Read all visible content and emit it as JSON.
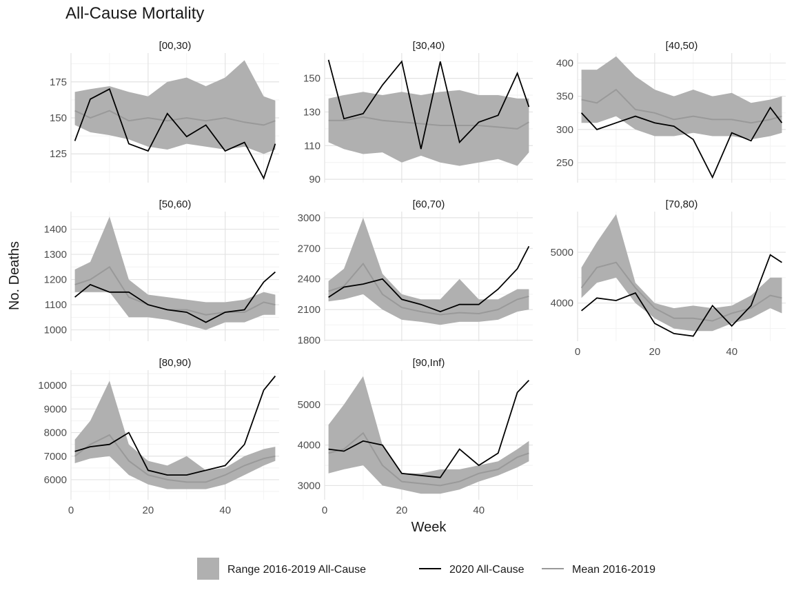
{
  "title": "All-Cause Mortality",
  "chart_data": {
    "type": "line",
    "title": "All-Cause Mortality",
    "xlabel": "Week",
    "ylabel": "No. Deaths",
    "xlim": [
      0,
      54
    ],
    "x_ticks": [
      "0",
      "20",
      "40"
    ],
    "grid": true,
    "legend_position": "bottom",
    "legend": [
      {
        "key": "range",
        "label": "Range 2016-2019 All-Cause",
        "color": "#b0b0b0"
      },
      {
        "key": "y2020",
        "label": "2020 All-Cause",
        "color": "#000000"
      },
      {
        "key": "mean",
        "label": "Mean 2016-2019",
        "color": "#999999"
      }
    ],
    "panels": [
      {
        "label": "[00,30)",
        "ylim": [
          105,
          195
        ],
        "y_ticks": [
          125,
          150,
          175
        ],
        "x": [
          1,
          5,
          10,
          15,
          20,
          25,
          30,
          35,
          40,
          45,
          50,
          53
        ],
        "y2020": [
          134,
          163,
          170,
          132,
          127,
          153,
          137,
          145,
          127,
          133,
          108,
          132
        ],
        "mean": [
          155,
          150,
          155,
          148,
          150,
          148,
          150,
          148,
          150,
          147,
          145,
          148
        ],
        "lower": [
          145,
          140,
          138,
          135,
          130,
          128,
          132,
          130,
          128,
          130,
          125,
          128
        ],
        "upper": [
          168,
          170,
          172,
          168,
          165,
          175,
          178,
          172,
          178,
          190,
          165,
          162
        ]
      },
      {
        "label": "[30,40)",
        "ylim": [
          88,
          165
        ],
        "y_ticks": [
          90,
          110,
          130,
          150
        ],
        "x": [
          1,
          5,
          10,
          15,
          20,
          25,
          30,
          35,
          40,
          45,
          50,
          53
        ],
        "y2020": [
          161,
          126,
          129,
          146,
          160,
          108,
          160,
          112,
          124,
          128,
          153,
          133
        ],
        "mean": [
          125,
          125,
          127,
          125,
          124,
          123,
          122,
          122,
          122,
          121,
          120,
          124
        ],
        "lower": [
          112,
          108,
          105,
          106,
          100,
          104,
          100,
          98,
          100,
          102,
          98,
          106
        ],
        "upper": [
          138,
          140,
          142,
          140,
          142,
          140,
          142,
          143,
          140,
          140,
          138,
          138
        ]
      },
      {
        "label": "[40,50)",
        "ylim": [
          220,
          415
        ],
        "y_ticks": [
          250,
          300,
          350,
          400
        ],
        "x": [
          1,
          5,
          10,
          15,
          20,
          25,
          30,
          35,
          40,
          45,
          50,
          53
        ],
        "y2020": [
          325,
          300,
          310,
          320,
          310,
          305,
          285,
          228,
          295,
          283,
          333,
          310
        ],
        "mean": [
          345,
          340,
          360,
          330,
          325,
          315,
          320,
          315,
          315,
          310,
          315,
          320
        ],
        "lower": [
          310,
          310,
          320,
          300,
          290,
          290,
          295,
          290,
          290,
          285,
          290,
          295
        ],
        "upper": [
          390,
          390,
          410,
          380,
          360,
          350,
          360,
          350,
          355,
          340,
          345,
          350
        ]
      },
      {
        "label": "[50,60)",
        "ylim": [
          955,
          1470
        ],
        "y_ticks": [
          1000,
          1100,
          1200,
          1300,
          1400
        ],
        "x": [
          1,
          5,
          10,
          15,
          20,
          25,
          30,
          35,
          40,
          45,
          50,
          53
        ],
        "y2020": [
          1130,
          1180,
          1150,
          1150,
          1100,
          1080,
          1070,
          1030,
          1070,
          1080,
          1190,
          1230
        ],
        "mean": [
          1180,
          1200,
          1250,
          1130,
          1100,
          1080,
          1080,
          1060,
          1070,
          1070,
          1110,
          1100
        ],
        "lower": [
          1150,
          1150,
          1150,
          1050,
          1050,
          1040,
          1020,
          1000,
          1030,
          1030,
          1060,
          1060
        ],
        "upper": [
          1240,
          1270,
          1450,
          1200,
          1140,
          1130,
          1120,
          1110,
          1110,
          1120,
          1150,
          1140
        ]
      },
      {
        "label": "[60,70)",
        "ylim": [
          1790,
          3060
        ],
        "y_ticks": [
          1800,
          2100,
          2400,
          2700,
          3000
        ],
        "x": [
          1,
          5,
          10,
          15,
          20,
          25,
          30,
          35,
          40,
          45,
          50,
          53
        ],
        "y2020": [
          2220,
          2320,
          2350,
          2400,
          2200,
          2150,
          2080,
          2150,
          2150,
          2300,
          2500,
          2720
        ],
        "mean": [
          2280,
          2330,
          2550,
          2250,
          2120,
          2080,
          2050,
          2070,
          2060,
          2100,
          2200,
          2230
        ],
        "lower": [
          2180,
          2200,
          2250,
          2100,
          2000,
          1980,
          1950,
          1980,
          1980,
          2000,
          2080,
          2100
        ],
        "upper": [
          2380,
          2500,
          3000,
          2450,
          2250,
          2200,
          2200,
          2400,
          2200,
          2200,
          2300,
          2300
        ]
      },
      {
        "label": "[70,80)",
        "ylim": [
          3250,
          5800
        ],
        "y_ticks": [
          4000,
          5000
        ],
        "x": [
          1,
          5,
          10,
          15,
          20,
          25,
          30,
          35,
          40,
          45,
          50,
          53
        ],
        "y2020": [
          3850,
          4100,
          4050,
          4200,
          3600,
          3400,
          3350,
          3950,
          3550,
          3950,
          4950,
          4800
        ],
        "mean": [
          4300,
          4700,
          4800,
          4300,
          3900,
          3700,
          3700,
          3650,
          3800,
          3900,
          4150,
          4100
        ],
        "lower": [
          4100,
          4400,
          4500,
          4000,
          3700,
          3500,
          3450,
          3450,
          3600,
          3700,
          3900,
          3800
        ],
        "upper": [
          4700,
          5200,
          5750,
          4400,
          4000,
          3900,
          3950,
          3900,
          3950,
          4150,
          4500,
          4500
        ]
      },
      {
        "label": "[80,90)",
        "ylim": [
          5150,
          10650
        ],
        "y_ticks": [
          6000,
          7000,
          8000,
          9000,
          10000
        ],
        "x": [
          1,
          5,
          10,
          15,
          20,
          25,
          30,
          35,
          40,
          45,
          50,
          53
        ],
        "y2020": [
          7200,
          7400,
          7500,
          8000,
          6400,
          6200,
          6200,
          6400,
          6600,
          7500,
          9800,
          10400
        ],
        "mean": [
          7000,
          7500,
          7900,
          6800,
          6200,
          6000,
          5900,
          5900,
          6200,
          6600,
          6900,
          7000
        ],
        "lower": [
          6700,
          6900,
          7000,
          6200,
          5800,
          5600,
          5600,
          5600,
          5800,
          6200,
          6600,
          6800
        ],
        "upper": [
          7700,
          8500,
          10200,
          7500,
          6800,
          6600,
          7000,
          6400,
          6500,
          7000,
          7300,
          7400
        ]
      },
      {
        "label": "[90,Inf)",
        "ylim": [
          2650,
          5850
        ],
        "y_ticks": [
          3000,
          4000,
          5000
        ],
        "x": [
          1,
          5,
          10,
          15,
          20,
          25,
          30,
          35,
          40,
          45,
          50,
          53
        ],
        "y2020": [
          3900,
          3850,
          4100,
          4000,
          3300,
          3250,
          3200,
          3900,
          3500,
          3800,
          5300,
          5600
        ],
        "mean": [
          3800,
          3900,
          4300,
          3500,
          3100,
          3050,
          3000,
          3100,
          3300,
          3400,
          3700,
          3800
        ],
        "lower": [
          3300,
          3400,
          3500,
          3000,
          2900,
          2800,
          2800,
          2900,
          3100,
          3250,
          3450,
          3600
        ],
        "upper": [
          4500,
          5000,
          5700,
          4000,
          3300,
          3300,
          3400,
          3400,
          3500,
          3600,
          3900,
          4100
        ]
      }
    ]
  }
}
